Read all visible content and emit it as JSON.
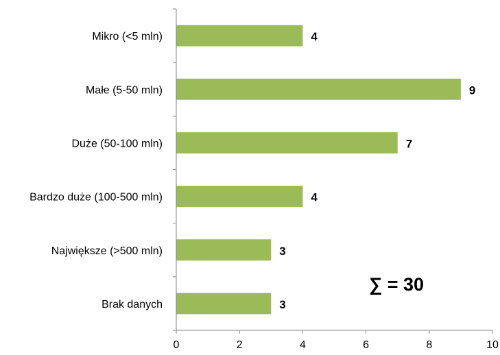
{
  "chart_data": {
    "type": "bar",
    "orientation": "horizontal",
    "categories": [
      "Mikro (<5 mln)",
      "Małe (5-50 mln)",
      "Duże (50-100 mln)",
      "Bardzo duże (100-500 mln)",
      "Największe (>500 mln)",
      "Brak danych"
    ],
    "values": [
      4,
      9,
      7,
      4,
      3,
      3
    ],
    "data_labels": [
      "4",
      "9",
      "7",
      "4",
      "3",
      "3"
    ],
    "xlim": [
      0,
      10
    ],
    "x_ticks": [
      0,
      2,
      4,
      6,
      8,
      10
    ],
    "x_tick_labels": [
      "0",
      "2",
      "4",
      "6",
      "8",
      "10"
    ],
    "title": "",
    "xlabel": "",
    "ylabel": "",
    "grid": false,
    "legend": "none",
    "annotation": "∑ = 30",
    "colors": {
      "bar": "#9BBB59",
      "axis": "#868686",
      "text": "#000000"
    }
  }
}
